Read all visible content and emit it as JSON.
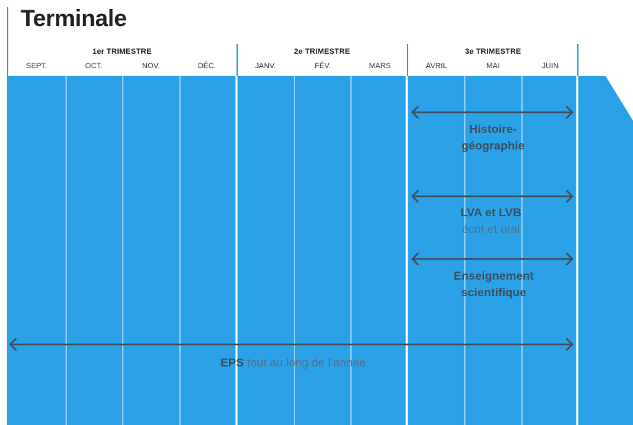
{
  "title": "Terminale",
  "trimesters": [
    {
      "label": "1er TRIMESTRE"
    },
    {
      "label": "2e TRIMESTRE"
    },
    {
      "label": "3e TRIMESTRE"
    }
  ],
  "months": [
    "SEPT.",
    "OCT.",
    "NOV.",
    "DÉC.",
    "JANV.",
    "FÉV.",
    "MARS",
    "AVRIL",
    "MAI",
    "JUIN"
  ],
  "items": [
    {
      "label": "Histoire-",
      "label2": "géographie",
      "start": "AVRIL",
      "end": "JUIN"
    },
    {
      "label": "LVA et LVB",
      "sub": "écrit et oral",
      "start": "AVRIL",
      "end": "JUIN"
    },
    {
      "label": "Enseignement",
      "label2": "scientifique",
      "start": "AVRIL",
      "end": "JUIN"
    },
    {
      "label": "EPS",
      "rest": "tout au long de l’année",
      "start": "SEPT.",
      "end": "JUIN"
    }
  ],
  "colors": {
    "band": "#2ba2e8",
    "arrow": "#3f4f5c",
    "separator": "#ffffff"
  }
}
